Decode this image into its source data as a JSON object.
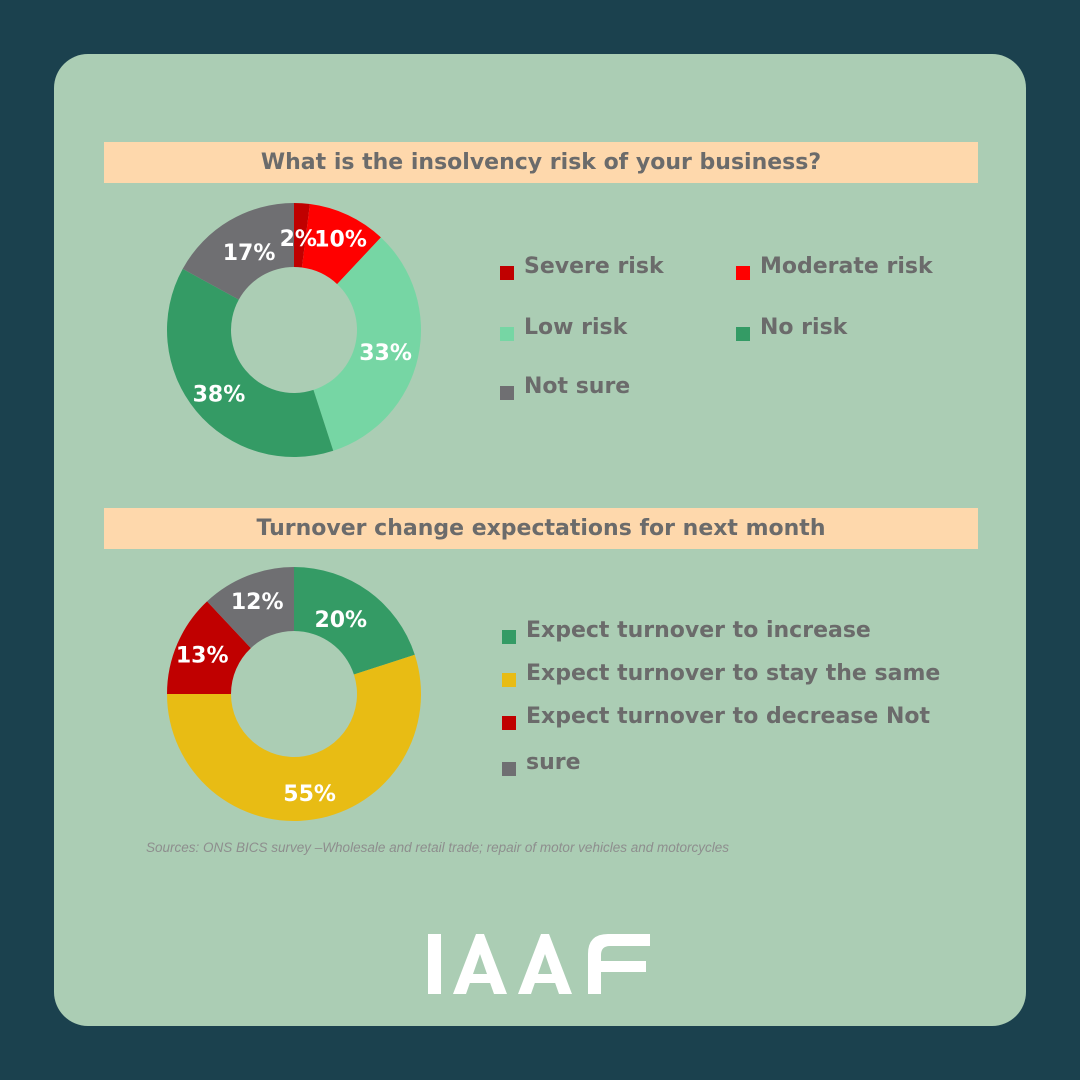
{
  "source_note": "Sources: ONS BICS survey –Wholesale and retail trade; repair of motor vehicles and motorcycles",
  "logo_text": "IAAF",
  "chart_data": [
    {
      "type": "pie",
      "donut": true,
      "title": "What is the insolvency risk of your business?",
      "categories": [
        "Severe risk",
        "Moderate risk",
        "Low risk",
        "No risk",
        "Not sure"
      ],
      "values": [
        2,
        10,
        33,
        38,
        17
      ],
      "data_labels": [
        "2%",
        "10%",
        "33%",
        "38%",
        "17%"
      ],
      "colors": [
        "#c00000",
        "#ff0000",
        "#76d6a4",
        "#349b65",
        "#6f6f72"
      ],
      "legend_position": "right"
    },
    {
      "type": "pie",
      "donut": true,
      "title": "Turnover change expectations for next month",
      "categories": [
        "Expect turnover to increase",
        "Expect turnover to stay the same",
        "Expect turnover to decrease",
        "Not sure"
      ],
      "values": [
        20,
        55,
        13,
        12
      ],
      "data_labels": [
        "20%",
        "55%",
        "13%",
        "12%"
      ],
      "colors": [
        "#349b65",
        "#e8bc14",
        "#c00000",
        "#6f6f72"
      ],
      "legend_position": "right",
      "legend_lines": [
        "Expect turnover to increase",
        "Expect turnover to stay the same",
        "Expect turnover to decrease Not",
        "sure"
      ]
    }
  ]
}
